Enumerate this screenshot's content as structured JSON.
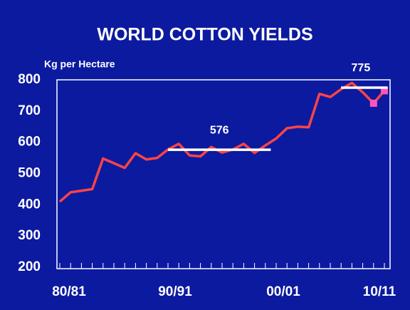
{
  "chart_data": {
    "type": "line",
    "title": "WORLD COTTON YIELDS",
    "y_label": "Kg per Hectare",
    "categories": [
      "80/81",
      null,
      null,
      null,
      null,
      null,
      null,
      null,
      null,
      null,
      "90/91",
      null,
      null,
      null,
      null,
      null,
      null,
      null,
      null,
      null,
      "00/01",
      null,
      null,
      null,
      null,
      null,
      null,
      null,
      null,
      null,
      "10/11"
    ],
    "series": [
      {
        "color": "#ff4444",
        "values": [
          410,
          440,
          445,
          450,
          548,
          533,
          518,
          565,
          545,
          550,
          577,
          595,
          558,
          555,
          585,
          567,
          577,
          595,
          566,
          590,
          612,
          645,
          650,
          648,
          755,
          745,
          770,
          790,
          760,
          725,
          765
        ],
        "marker_indices": [
          29,
          30
        ],
        "marker_color": "#ff55bb"
      }
    ],
    "reference_lines": [
      {
        "label": "576",
        "value": 576,
        "start_index": 10,
        "end_index": 19.5,
        "color": "#ffffff"
      },
      {
        "label": "775",
        "value": 775,
        "start_index": 26,
        "end_index": 30.3,
        "color": "#ffffff"
      }
    ],
    "ylim": [
      200,
      800
    ],
    "yticks": [
      200,
      300,
      400,
      500,
      600,
      700,
      800
    ],
    "title_color": "#ffff00",
    "background": "#0c1aa0"
  }
}
